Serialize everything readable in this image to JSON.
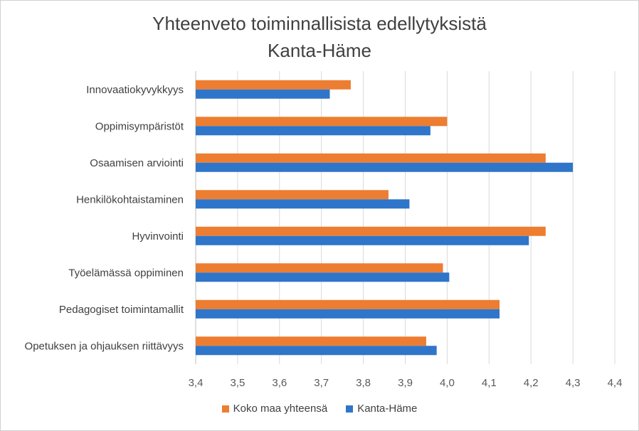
{
  "chart_data": {
    "type": "bar",
    "orientation": "horizontal",
    "title": "Yhteenveto toiminnallisista edellytyksistä",
    "subtitle": "Kanta-Häme",
    "categories": [
      "Innovaatiokyvykkyys",
      "Oppimisympäristöt",
      "Osaamisen arviointi",
      "Henkilökohtaistaminen",
      "Hyvinvointi",
      "Työelämässä oppiminen",
      "Pedagogiset toimintamallit",
      "Opetuksen ja ohjauksen riittävyys"
    ],
    "series": [
      {
        "name": "Koko maa yhteensä",
        "color": "#ED7D31",
        "values": [
          3.77,
          4.0,
          4.235,
          3.86,
          4.235,
          3.99,
          4.125,
          3.95
        ]
      },
      {
        "name": "Kanta-Häme",
        "color": "#2F75C9",
        "values": [
          3.72,
          3.96,
          4.3,
          3.91,
          4.195,
          4.005,
          4.125,
          3.975
        ]
      }
    ],
    "xlim": [
      3.4,
      4.4
    ],
    "xticks": [
      "3,4",
      "3,5",
      "3,6",
      "3,7",
      "3,8",
      "3,9",
      "4,0",
      "4,1",
      "4,2",
      "4,3",
      "4,4"
    ],
    "grid": true,
    "legend_position": "bottom"
  }
}
